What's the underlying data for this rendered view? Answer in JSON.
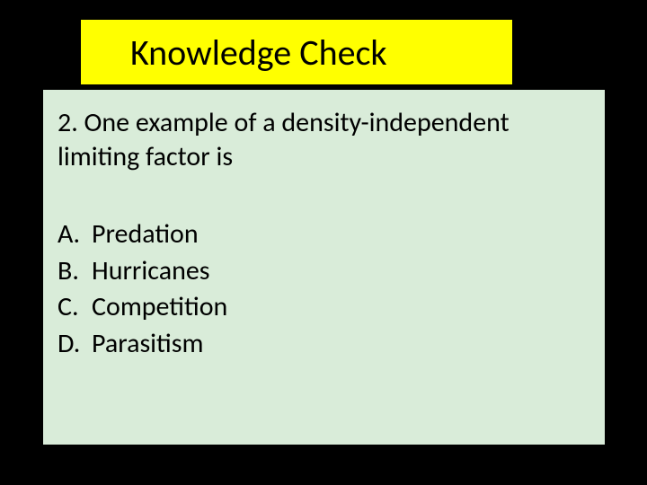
{
  "slide": {
    "background_color": "#000000",
    "title": {
      "text": "Knowledge Check",
      "background_color": "#ffff00",
      "text_color": "#000000",
      "font_size": 40
    },
    "panel": {
      "background_color": "#d9ecd9",
      "question_number": "2.",
      "question_text": "2. One example of a density-independent limiting factor is",
      "text_color": "#000000",
      "font_size": 30,
      "options": [
        {
          "letter": "A.",
          "text": "Predation"
        },
        {
          "letter": "B.",
          "text": "Hurricanes"
        },
        {
          "letter": "C.",
          "text": "Competition"
        },
        {
          "letter": "D.",
          "text": "Parasitism"
        }
      ]
    }
  }
}
